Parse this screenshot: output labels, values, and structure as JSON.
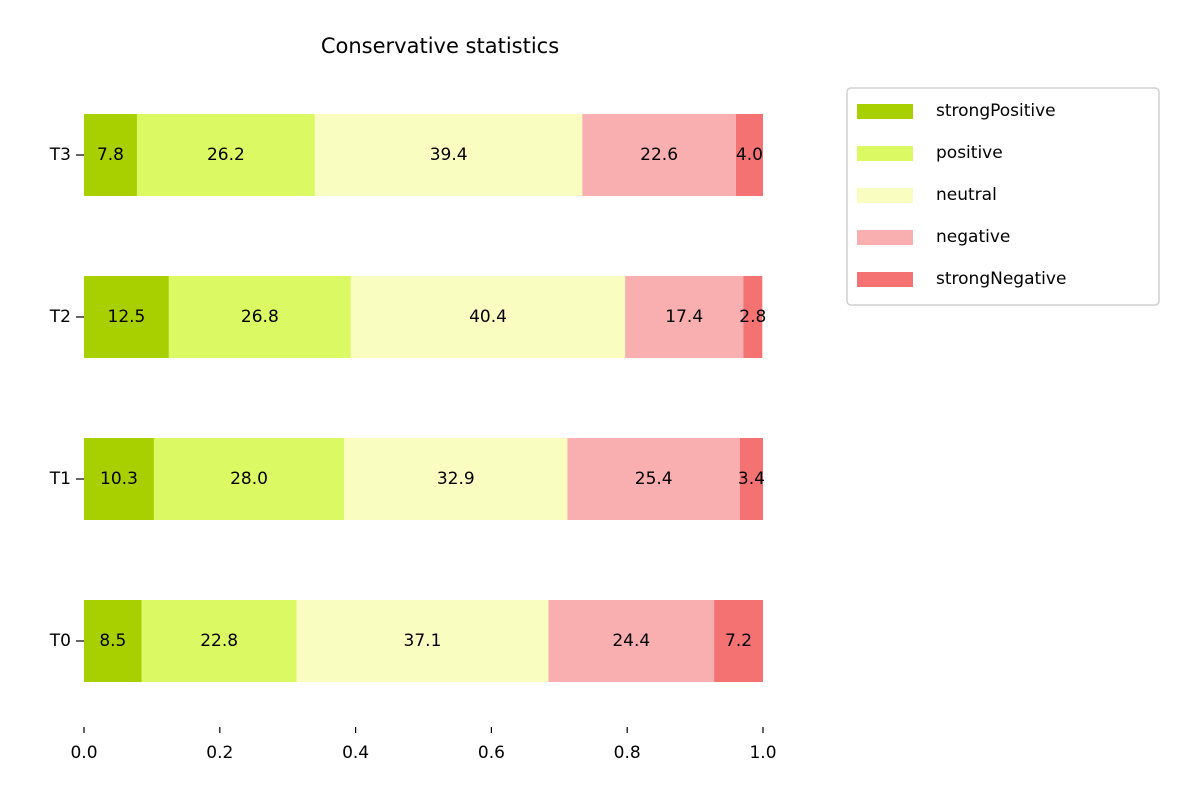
{
  "chart_data": {
    "type": "stacked_barh",
    "title": "Conservative statistics",
    "categories": [
      "T0",
      "T1",
      "T2",
      "T3"
    ],
    "series": [
      {
        "name": "strongPositive",
        "color": "#a8d000",
        "values": [
          0.085,
          0.103,
          0.125,
          0.078
        ],
        "value_labels": [
          "8.5",
          "10.3",
          "12.5",
          "7.8"
        ]
      },
      {
        "name": "positive",
        "color": "#dbf962",
        "values": [
          0.228,
          0.28,
          0.268,
          0.262
        ],
        "value_labels": [
          "22.8",
          "28.0",
          "26.8",
          "26.2"
        ]
      },
      {
        "name": "neutral",
        "color": "#fafdc0",
        "values": [
          0.371,
          0.329,
          0.404,
          0.394
        ],
        "value_labels": [
          "37.1",
          "32.9",
          "40.4",
          "39.4"
        ]
      },
      {
        "name": "negative",
        "color": "#f9afaf",
        "values": [
          0.244,
          0.254,
          0.174,
          0.226
        ],
        "value_labels": [
          "24.4",
          "25.4",
          "17.4",
          "22.6"
        ]
      },
      {
        "name": "strongNegative",
        "color": "#f47272",
        "values": [
          0.072,
          0.034,
          0.028,
          0.04
        ],
        "value_labels": [
          "7.2",
          "3.4",
          "2.8",
          "4.0"
        ]
      }
    ],
    "xlim": [
      0,
      1
    ],
    "xticks": [
      {
        "value": 0,
        "label": "0.0"
      },
      0.2,
      0.4,
      0.6,
      0.8,
      {
        "value": 1,
        "label": "1.0"
      }
    ]
  }
}
